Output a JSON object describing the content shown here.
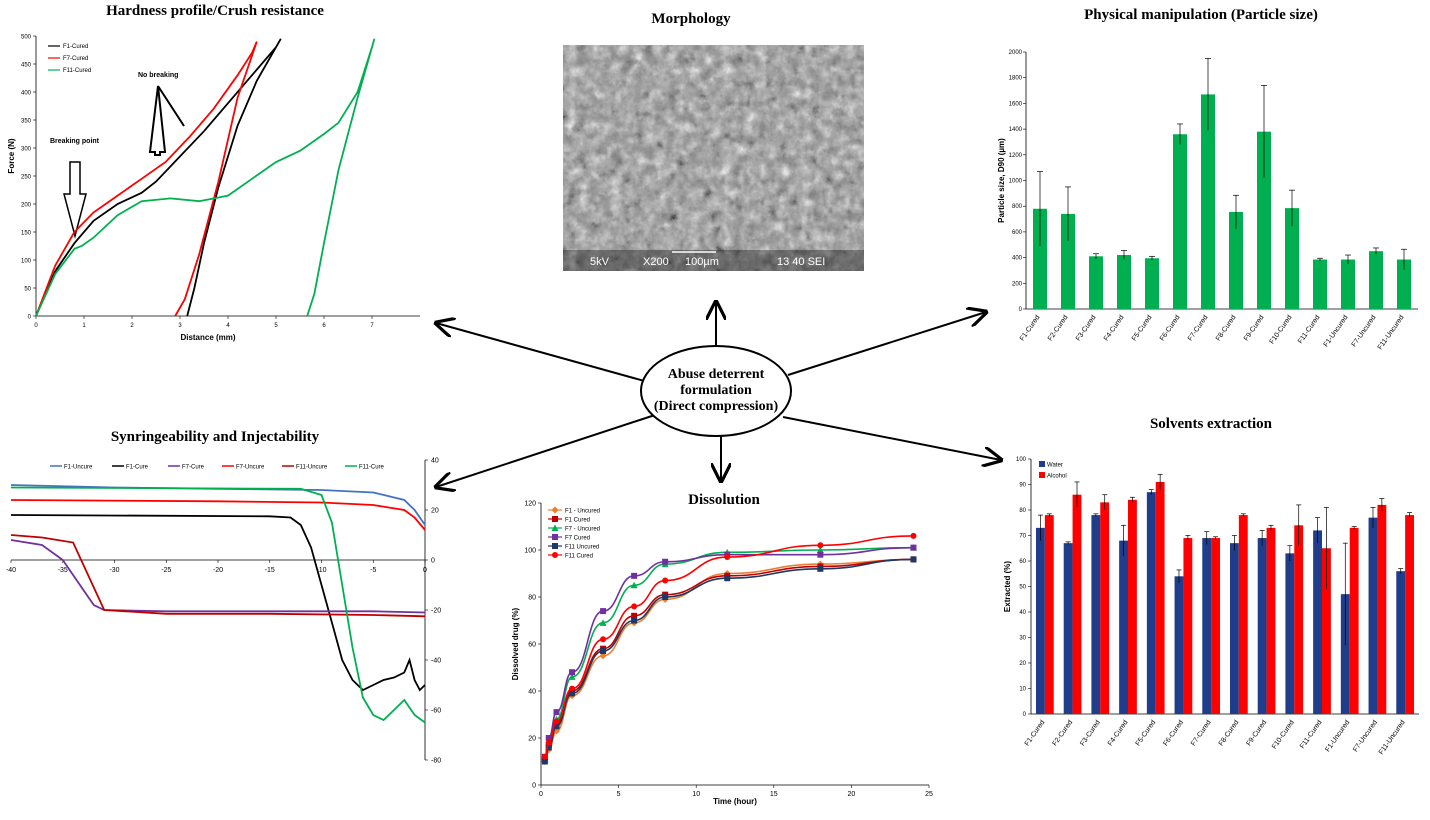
{
  "center": {
    "lines": [
      "Abuse deterrent",
      "formulation",
      "(Direct compression)"
    ]
  },
  "panels": {
    "hardness": {
      "title": "Hardness profile/Crush resistance",
      "annotations": {
        "no_breaking": "No breaking",
        "breaking_point": "Breaking point"
      }
    },
    "morphology": {
      "title": "Morphology",
      "sem_labels": [
        "5kV",
        "X200",
        "100µm",
        "13 40 SEI"
      ]
    },
    "particle": {
      "title": "Physical manipulation (Particle size)"
    },
    "syringe": {
      "title": "Synringeability and Injectability"
    },
    "dissolution": {
      "title": "Dissolution"
    },
    "solvents": {
      "title": "Solvents extraction"
    }
  },
  "chart_data": [
    {
      "id": "hardness",
      "type": "line",
      "xlabel": "Distance (mm)",
      "ylabel": "Force (N)",
      "xlim": [
        0,
        8
      ],
      "ylim": [
        0,
        500
      ],
      "xticks": [
        0,
        1,
        2,
        3,
        4,
        5,
        6,
        7
      ],
      "yticks": [
        0,
        50,
        100,
        150,
        200,
        250,
        300,
        350,
        400,
        450,
        500
      ],
      "legend_position": "top-left",
      "series": [
        {
          "name": "F1-Cured",
          "color": "#000000",
          "points": [
            [
              0,
              0
            ],
            [
              0.4,
              80
            ],
            [
              0.8,
              130
            ],
            [
              1.2,
              170
            ],
            [
              1.7,
              200
            ],
            [
              2.2,
              220
            ],
            [
              2.5,
              240
            ],
            [
              3,
              285
            ],
            [
              3.5,
              330
            ],
            [
              4,
              380
            ],
            [
              4.5,
              430
            ],
            [
              5,
              480
            ],
            [
              5.1,
              495
            ],
            [
              4.6,
              420
            ],
            [
              4.2,
              340
            ],
            [
              3.8,
              230
            ],
            [
              3.5,
              130
            ],
            [
              3.3,
              50
            ],
            [
              3.15,
              0
            ]
          ]
        },
        {
          "name": "F7-Cured",
          "color": "#ff0000",
          "points": [
            [
              0,
              0
            ],
            [
              0.4,
              90
            ],
            [
              0.8,
              150
            ],
            [
              1.2,
              185
            ],
            [
              1.7,
              215
            ],
            [
              2.2,
              245
            ],
            [
              2.7,
              275
            ],
            [
              3.2,
              320
            ],
            [
              3.7,
              370
            ],
            [
              4.2,
              430
            ],
            [
              4.5,
              470
            ],
            [
              4.6,
              490
            ],
            [
              4.2,
              390
            ],
            [
              3.8,
              240
            ],
            [
              3.4,
              110
            ],
            [
              3.1,
              30
            ],
            [
              2.9,
              0
            ]
          ]
        },
        {
          "name": "F11-Cured",
          "color": "#00b050",
          "points": [
            [
              0,
              0
            ],
            [
              0.4,
              75
            ],
            [
              0.8,
              120
            ],
            [
              0.95,
              125
            ],
            [
              1.2,
              140
            ],
            [
              1.7,
              180
            ],
            [
              2.2,
              205
            ],
            [
              2.8,
              210
            ],
            [
              3.4,
              205
            ],
            [
              4,
              215
            ],
            [
              4.5,
              245
            ],
            [
              5,
              275
            ],
            [
              5.5,
              295
            ],
            [
              6,
              325
            ],
            [
              6.3,
              345
            ],
            [
              6.7,
              400
            ],
            [
              7,
              480
            ],
            [
              7.05,
              495
            ],
            [
              6.7,
              390
            ],
            [
              6.3,
              260
            ],
            [
              6,
              130
            ],
            [
              5.8,
              40
            ],
            [
              5.65,
              0
            ]
          ]
        }
      ]
    },
    {
      "id": "particle",
      "type": "bar",
      "ylabel": "Particle size, D90 (µm)",
      "ylim": [
        0,
        2000
      ],
      "yticks": [
        0,
        200,
        400,
        600,
        800,
        1000,
        1200,
        1400,
        1600,
        1800,
        2000
      ],
      "categories": [
        "F1-Cured",
        "F2-Cured",
        "F3-Cured",
        "F4-Cured",
        "F5-Cured",
        "F6-Cured",
        "F7-Cured",
        "F8-Cured",
        "F9-Cured",
        "F10-Cured",
        "F11-Cured",
        "F1-Uncured",
        "F7-Uncured",
        "F11-Uncured"
      ],
      "bar_color": "#00b050",
      "values": [
        780,
        740,
        410,
        420,
        395,
        1360,
        1670,
        755,
        1380,
        785,
        385,
        385,
        450,
        385
      ],
      "errors": [
        290,
        210,
        20,
        35,
        15,
        80,
        280,
        130,
        360,
        140,
        10,
        35,
        25,
        80
      ]
    },
    {
      "id": "syringe",
      "type": "line",
      "xlim": [
        -40,
        0
      ],
      "ylim": [
        -80,
        40
      ],
      "xticks": [
        -40,
        -35,
        -30,
        -25,
        -20,
        -15,
        -10,
        -5,
        0
      ],
      "yticks": [
        40,
        20,
        0,
        -20,
        -40,
        -60,
        -80
      ],
      "legend_position": "top",
      "series": [
        {
          "name": "F1-Uncure",
          "color": "#4472c4",
          "points": [
            [
              -40,
              30
            ],
            [
              -30,
              29
            ],
            [
              -20,
              28.5
            ],
            [
              -10,
              28
            ],
            [
              -5,
              27
            ],
            [
              -2,
              24
            ],
            [
              -1,
              20
            ],
            [
              0,
              14
            ]
          ]
        },
        {
          "name": "F1-Cure",
          "color": "#000000",
          "points": [
            [
              -40,
              18
            ],
            [
              -15,
              17.5
            ],
            [
              -13,
              17
            ],
            [
              -12,
              14
            ],
            [
              -11,
              5
            ],
            [
              -10,
              -10
            ],
            [
              -9,
              -25
            ],
            [
              -8,
              -40
            ],
            [
              -7,
              -48
            ],
            [
              -6,
              -52
            ],
            [
              -5,
              -50
            ],
            [
              -4,
              -48
            ],
            [
              -3,
              -47
            ],
            [
              -2,
              -45
            ],
            [
              -1.5,
              -40
            ],
            [
              -1,
              -48
            ],
            [
              -0.5,
              -52
            ],
            [
              0,
              -50
            ]
          ]
        },
        {
          "name": "F7-Cure",
          "color": "#7030a0",
          "points": [
            [
              -40,
              8
            ],
            [
              -37,
              6
            ],
            [
              -35,
              0
            ],
            [
              -33,
              -12
            ],
            [
              -32,
              -18
            ],
            [
              -31,
              -20
            ],
            [
              -25,
              -20.5
            ],
            [
              -15,
              -20.5
            ],
            [
              -5,
              -20.5
            ],
            [
              0,
              -21
            ]
          ]
        },
        {
          "name": "F7-Uncure",
          "color": "#ff0000",
          "points": [
            [
              -40,
              24
            ],
            [
              -20,
              23.5
            ],
            [
              -10,
              23
            ],
            [
              -5,
              22
            ],
            [
              -2,
              20
            ],
            [
              -1,
              17
            ],
            [
              0,
              12
            ]
          ]
        },
        {
          "name": "F11-Uncure",
          "color": "#c00000",
          "points": [
            [
              -40,
              10
            ],
            [
              -37,
              9
            ],
            [
              -34,
              7
            ],
            [
              -31,
              -20
            ],
            [
              -25,
              -21.5
            ],
            [
              -15,
              -21.5
            ],
            [
              -5,
              -22
            ],
            [
              0,
              -22.5
            ]
          ]
        },
        {
          "name": "F11-Cure",
          "color": "#00b050",
          "points": [
            [
              -40,
              29
            ],
            [
              -12,
              28.5
            ],
            [
              -10,
              26
            ],
            [
              -9,
              15
            ],
            [
              -8,
              -10
            ],
            [
              -7,
              -35
            ],
            [
              -6,
              -55
            ],
            [
              -5,
              -62
            ],
            [
              -4,
              -64
            ],
            [
              -3,
              -60
            ],
            [
              -2,
              -56
            ],
            [
              -1,
              -62
            ],
            [
              0,
              -65
            ]
          ]
        }
      ]
    },
    {
      "id": "dissolution",
      "type": "line",
      "xlabel": "Time (hour)",
      "ylabel": "Dissolved drug (%)",
      "xlim": [
        0,
        25
      ],
      "ylim": [
        0,
        120
      ],
      "xticks": [
        0,
        5,
        10,
        15,
        20,
        25
      ],
      "yticks": [
        0,
        20,
        40,
        60,
        80,
        100,
        120
      ],
      "legend_position": "top-left",
      "series": [
        {
          "name": "F1 - Uncured",
          "color": "#ed7d31",
          "marker": "diamond",
          "x": [
            0.25,
            0.5,
            1,
            2,
            4,
            6,
            8,
            12,
            18,
            24
          ],
          "y": [
            10,
            15,
            23,
            38,
            55,
            69,
            79,
            90,
            94,
            96
          ]
        },
        {
          "name": "F1 Cured",
          "color": "#c00000",
          "marker": "square",
          "x": [
            0.25,
            0.5,
            1,
            2,
            4,
            6,
            8,
            12,
            18,
            24
          ],
          "y": [
            11,
            17,
            26,
            40,
            58,
            72,
            81,
            89,
            93,
            96
          ]
        },
        {
          "name": "F7 - Uncured",
          "color": "#00b050",
          "marker": "triangle",
          "x": [
            0.25,
            0.5,
            1,
            2,
            4,
            6,
            8,
            12,
            18,
            24
          ],
          "y": [
            11,
            18,
            28,
            46,
            69,
            85,
            94,
            99,
            100,
            101
          ]
        },
        {
          "name": "F7 Cured",
          "color": "#7030a0",
          "marker": "square",
          "x": [
            0.25,
            0.5,
            1,
            2,
            4,
            6,
            8,
            12,
            18,
            24
          ],
          "y": [
            12,
            20,
            31,
            48,
            74,
            89,
            95,
            98,
            98,
            101
          ]
        },
        {
          "name": "F11 Uncured",
          "color": "#1f3864",
          "marker": "square",
          "x": [
            0.25,
            0.5,
            1,
            2,
            4,
            6,
            8,
            12,
            18,
            24
          ],
          "y": [
            10,
            16,
            25,
            39,
            57,
            70,
            80,
            88,
            92,
            96
          ]
        },
        {
          "name": "F11 Cured",
          "color": "#ff0000",
          "marker": "circle",
          "x": [
            0.25,
            0.5,
            1,
            2,
            4,
            6,
            8,
            12,
            18,
            24
          ],
          "y": [
            12,
            18,
            27,
            41,
            62,
            76,
            87,
            97,
            102,
            106
          ]
        }
      ]
    },
    {
      "id": "solvents",
      "type": "bar",
      "ylabel": "Extracted (%)",
      "ylim": [
        0,
        100
      ],
      "yticks": [
        0,
        10,
        20,
        30,
        40,
        50,
        60,
        70,
        80,
        90,
        100
      ],
      "legend_position": "top-left",
      "categories": [
        "F1-Cured",
        "F2-Cured",
        "F3-Cured",
        "F4-Cured",
        "F5-Cured",
        "F6-Cured",
        "F7-Cured",
        "F8-Cured",
        "F9-Cured",
        "F10-Cured",
        "F11-Cured",
        "F1-Uncured",
        "F7-Uncured",
        "F11-Uncured"
      ],
      "series": [
        {
          "name": "Water",
          "color": "#1f3d8a",
          "values": [
            73,
            67,
            78,
            68,
            87,
            54,
            69,
            67,
            69,
            63,
            72,
            47,
            77,
            56
          ],
          "errors": [
            5,
            0.5,
            0.5,
            6,
            1,
            2.5,
            2.5,
            3,
            3,
            3,
            5,
            20,
            4,
            1
          ]
        },
        {
          "name": "Alcohol",
          "color": "#ff0000",
          "values": [
            78,
            86,
            83,
            84,
            91,
            69,
            69,
            78,
            73,
            74,
            65,
            73,
            82,
            78
          ],
          "errors": [
            0.5,
            5,
            3,
            1,
            3,
            1,
            0.5,
            0.5,
            1,
            8,
            16,
            0.5,
            2.5,
            1
          ]
        }
      ]
    }
  ]
}
